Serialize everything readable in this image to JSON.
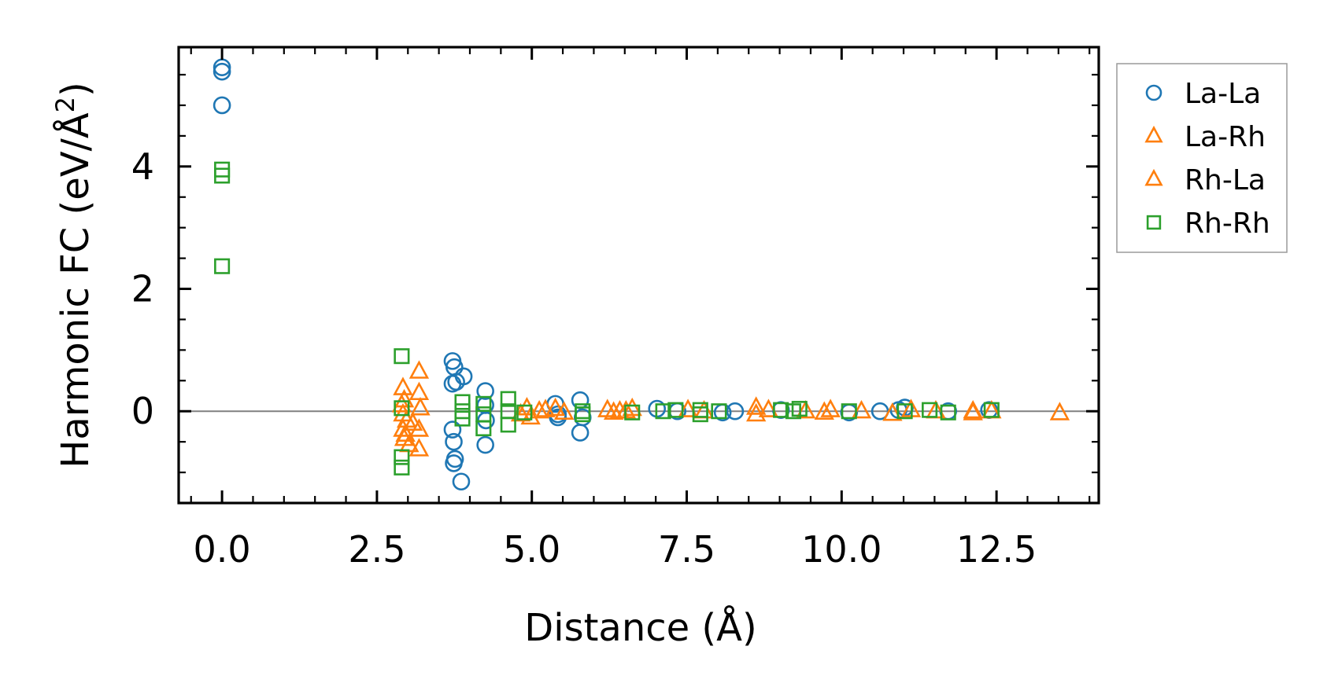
{
  "chart_data": {
    "type": "scatter",
    "title": "",
    "xlabel": "Distance (Å)",
    "ylabel": "Harmonic FC (eV/Å",
    "ylabel_superscript": "2",
    "ylabel_suffix": ")",
    "xlim": [
      -0.7,
      14.15
    ],
    "ylim": [
      -1.5,
      5.95
    ],
    "xticks": [
      0.0,
      2.5,
      5.0,
      7.5,
      10.0,
      12.5
    ],
    "xtick_labels": [
      "0.0",
      "2.5",
      "5.0",
      "7.5",
      "10.0",
      "12.5"
    ],
    "yticks": [
      0,
      2,
      4
    ],
    "ytick_labels": [
      "0",
      "2",
      "4"
    ],
    "zero_line": true,
    "legend_position": "outside-right",
    "series": [
      {
        "name": "La-La",
        "marker": "circle",
        "color": "#1f77b4",
        "points": [
          [
            0,
            5.62
          ],
          [
            0,
            5.55
          ],
          [
            0,
            5.0
          ],
          [
            3.72,
            0.82
          ],
          [
            3.72,
            0.45
          ],
          [
            3.75,
            0.72
          ],
          [
            3.78,
            0.48
          ],
          [
            3.9,
            0.57
          ],
          [
            3.72,
            -0.3
          ],
          [
            3.74,
            -0.5
          ],
          [
            3.76,
            -0.78
          ],
          [
            3.74,
            -0.85
          ],
          [
            3.86,
            -1.15
          ],
          [
            4.25,
            0.33
          ],
          [
            4.25,
            0.1
          ],
          [
            4.26,
            -0.15
          ],
          [
            4.25,
            -0.55
          ],
          [
            5.38,
            0.12
          ],
          [
            5.42,
            -0.05
          ],
          [
            5.42,
            -0.1
          ],
          [
            5.78,
            0.18
          ],
          [
            5.78,
            -0.35
          ],
          [
            5.82,
            -0.1
          ],
          [
            7.02,
            0.04
          ],
          [
            7.35,
            0.0
          ],
          [
            8.08,
            -0.02
          ],
          [
            8.28,
            0.0
          ],
          [
            9.02,
            0.02
          ],
          [
            10.12,
            -0.02
          ],
          [
            10.62,
            0.0
          ],
          [
            10.92,
            0.02
          ],
          [
            11.02,
            0.06
          ],
          [
            11.72,
            0.0
          ],
          [
            12.38,
            0.02
          ]
        ]
      },
      {
        "name": "La-Rh",
        "marker": "triangle",
        "color": "#ff7f0e",
        "points": [
          [
            2.92,
            0.38
          ],
          [
            2.94,
            0.18
          ],
          [
            2.92,
            -0.05
          ],
          [
            2.96,
            -0.38
          ],
          [
            2.98,
            -0.15
          ],
          [
            3.18,
            0.65
          ],
          [
            3.18,
            0.3
          ],
          [
            3.2,
            0.05
          ],
          [
            3.18,
            -0.3
          ],
          [
            3.18,
            -0.62
          ],
          [
            4.92,
            0.05
          ],
          [
            4.98,
            -0.1
          ],
          [
            5.22,
            0.02
          ],
          [
            5.38,
            0.04
          ],
          [
            6.22,
            0.02
          ],
          [
            6.42,
            0.0
          ],
          [
            6.62,
            0.04
          ],
          [
            7.78,
            0.0
          ],
          [
            8.62,
            0.06
          ],
          [
            8.82,
            0.02
          ],
          [
            9.72,
            -0.02
          ],
          [
            10.32,
            0.0
          ],
          [
            11.12,
            0.02
          ],
          [
            12.12,
            0.0
          ],
          [
            13.52,
            -0.03
          ]
        ]
      },
      {
        "name": "Rh-La",
        "marker": "triangle",
        "color": "#ff7f0e",
        "points": [
          [
            2.9,
            0.1
          ],
          [
            2.92,
            -0.3
          ],
          [
            2.94,
            -0.45
          ],
          [
            3.02,
            -0.55
          ],
          [
            3.08,
            -0.2
          ],
          [
            4.82,
            -0.05
          ],
          [
            5.12,
            0.0
          ],
          [
            5.52,
            -0.02
          ],
          [
            6.32,
            -0.02
          ],
          [
            6.52,
            0.0
          ],
          [
            7.52,
            0.02
          ],
          [
            8.62,
            -0.05
          ],
          [
            9.42,
            0.0
          ],
          [
            9.82,
            0.02
          ],
          [
            10.82,
            -0.04
          ],
          [
            11.52,
            0.0
          ],
          [
            12.12,
            -0.03
          ],
          [
            12.42,
            0.0
          ]
        ]
      },
      {
        "name": "Rh-Rh",
        "marker": "square",
        "color": "#2ca02c",
        "points": [
          [
            0,
            3.95
          ],
          [
            0,
            3.85
          ],
          [
            0,
            2.37
          ],
          [
            2.9,
            0.9
          ],
          [
            2.9,
            0.05
          ],
          [
            2.9,
            -0.75
          ],
          [
            2.9,
            -0.92
          ],
          [
            3.88,
            0.15
          ],
          [
            3.88,
            0.0
          ],
          [
            3.88,
            -0.12
          ],
          [
            4.22,
            0.12
          ],
          [
            4.22,
            -0.05
          ],
          [
            4.22,
            -0.28
          ],
          [
            4.62,
            0.2
          ],
          [
            4.62,
            0.0
          ],
          [
            4.62,
            -0.22
          ],
          [
            4.88,
            -0.02
          ],
          [
            5.82,
            0.0
          ],
          [
            5.82,
            -0.05
          ],
          [
            6.62,
            -0.02
          ],
          [
            7.12,
            0.0
          ],
          [
            7.32,
            0.02
          ],
          [
            7.72,
            0.02
          ],
          [
            7.72,
            -0.05
          ],
          [
            8.02,
            0.0
          ],
          [
            9.02,
            0.02
          ],
          [
            9.22,
            0.0
          ],
          [
            9.32,
            0.04
          ],
          [
            10.12,
            0.0
          ],
          [
            11.02,
            0.0
          ],
          [
            11.42,
            0.02
          ],
          [
            11.72,
            -0.02
          ],
          [
            12.42,
            0.02
          ]
        ]
      }
    ]
  }
}
